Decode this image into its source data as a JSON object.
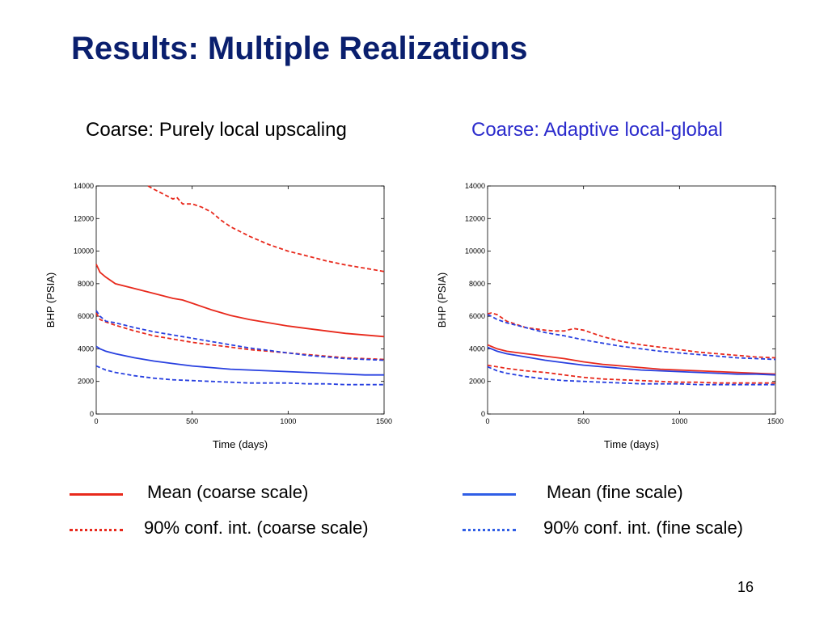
{
  "slide": {
    "title": "Results: Multiple Realizations",
    "page_number": "16",
    "subtitle_left": "Coarse: Purely local upscaling",
    "subtitle_right": "Coarse: Adaptive local-global"
  },
  "legend": {
    "mean_coarse": "Mean (coarse scale)",
    "mean_fine": "Mean (fine scale)",
    "ci_coarse": "90% conf. int. (coarse scale)",
    "ci_fine": "90% conf. int. (fine scale)"
  },
  "colors": {
    "coarse": "#e8291c",
    "fine": "#2840e0",
    "title": "#0a1f6e",
    "subtitle_right": "#2a2acc"
  },
  "chart_data": [
    {
      "type": "line",
      "xlabel": "Time (days)",
      "ylabel": "BHP (PSIA)",
      "xlim": [
        0,
        1500
      ],
      "ylim": [
        0,
        14000
      ],
      "xticks": [
        "0",
        "500",
        "1000",
        "1500"
      ],
      "yticks": [
        "0",
        "2000",
        "4000",
        "6000",
        "8000",
        "10000",
        "12000",
        "14000"
      ],
      "grid": false,
      "series": [
        {
          "style": "coarse-mean",
          "x": [
            0,
            20,
            50,
            100,
            200,
            300,
            400,
            450,
            500,
            600,
            700,
            800,
            900,
            1000,
            1100,
            1200,
            1300,
            1400,
            1500
          ],
          "y": [
            9200,
            8700,
            8400,
            8000,
            7700,
            7400,
            7100,
            7000,
            6800,
            6400,
            6050,
            5800,
            5600,
            5400,
            5250,
            5100,
            4950,
            4850,
            4750
          ]
        },
        {
          "style": "coarse-ci",
          "x": [
            270,
            300,
            350,
            400,
            420,
            450,
            500,
            550,
            600,
            650,
            700,
            800,
            900,
            1000,
            1100,
            1200,
            1300,
            1400,
            1500
          ],
          "y": [
            14000,
            13800,
            13500,
            13200,
            13300,
            12900,
            12900,
            12700,
            12400,
            11900,
            11500,
            10900,
            10400,
            10000,
            9700,
            9400,
            9150,
            8950,
            8750
          ]
        },
        {
          "style": "coarse-ci",
          "x": [
            0,
            20,
            50,
            100,
            200,
            300,
            400,
            500,
            600,
            700,
            800,
            900,
            1000,
            1100,
            1200,
            1300,
            1400,
            1500
          ],
          "y": [
            6200,
            5800,
            5650,
            5450,
            5100,
            4800,
            4600,
            4400,
            4250,
            4100,
            3950,
            3850,
            3750,
            3650,
            3550,
            3450,
            3400,
            3350
          ]
        },
        {
          "style": "fine-mean",
          "x": [
            0,
            20,
            50,
            100,
            200,
            300,
            400,
            500,
            600,
            700,
            800,
            900,
            1000,
            1100,
            1200,
            1300,
            1400,
            1500
          ],
          "y": [
            4150,
            4000,
            3850,
            3700,
            3450,
            3250,
            3100,
            2950,
            2850,
            2750,
            2700,
            2650,
            2600,
            2550,
            2500,
            2450,
            2400,
            2400
          ]
        },
        {
          "style": "fine-ci",
          "x": [
            0,
            20,
            50,
            100,
            200,
            300,
            400,
            500,
            600,
            700,
            800,
            900,
            1000,
            1100,
            1200,
            1300,
            1400,
            1500
          ],
          "y": [
            6350,
            6000,
            5700,
            5600,
            5300,
            5050,
            4850,
            4650,
            4450,
            4250,
            4050,
            3900,
            3750,
            3600,
            3500,
            3400,
            3350,
            3300
          ]
        },
        {
          "style": "fine-ci",
          "x": [
            0,
            20,
            50,
            100,
            200,
            300,
            400,
            500,
            600,
            700,
            800,
            900,
            1000,
            1100,
            1200,
            1300,
            1400,
            1500
          ],
          "y": [
            2950,
            2850,
            2700,
            2550,
            2350,
            2200,
            2100,
            2050,
            2000,
            1950,
            1900,
            1900,
            1900,
            1850,
            1850,
            1800,
            1800,
            1800
          ]
        }
      ]
    },
    {
      "type": "line",
      "xlabel": "Time (days)",
      "ylabel": "BHP (PSIA)",
      "xlim": [
        0,
        1500
      ],
      "ylim": [
        0,
        14000
      ],
      "xticks": [
        "0",
        "500",
        "1000",
        "1500"
      ],
      "yticks": [
        "0",
        "2000",
        "4000",
        "6000",
        "8000",
        "10000",
        "12000",
        "14000"
      ],
      "grid": false,
      "series": [
        {
          "style": "coarse-ci",
          "x": [
            0,
            20,
            50,
            100,
            150,
            200,
            300,
            350,
            400,
            450,
            500,
            550,
            600,
            700,
            800,
            900,
            1000,
            1100,
            1200,
            1300,
            1400,
            1500
          ],
          "y": [
            6150,
            6200,
            6100,
            5700,
            5500,
            5300,
            5150,
            5100,
            5100,
            5250,
            5150,
            4950,
            4750,
            4450,
            4250,
            4100,
            3950,
            3800,
            3700,
            3600,
            3500,
            3450
          ]
        },
        {
          "style": "fine-ci",
          "x": [
            0,
            20,
            50,
            100,
            200,
            300,
            400,
            500,
            600,
            700,
            800,
            900,
            1000,
            1100,
            1200,
            1300,
            1400,
            1500
          ],
          "y": [
            6100,
            6000,
            5800,
            5600,
            5300,
            5000,
            4800,
            4550,
            4350,
            4150,
            4000,
            3850,
            3750,
            3650,
            3550,
            3450,
            3400,
            3350
          ]
        },
        {
          "style": "coarse-mean",
          "x": [
            0,
            20,
            50,
            100,
            200,
            300,
            400,
            500,
            600,
            700,
            800,
            900,
            1000,
            1100,
            1200,
            1300,
            1400,
            1500
          ],
          "y": [
            4250,
            4150,
            4000,
            3850,
            3700,
            3550,
            3400,
            3200,
            3050,
            2950,
            2850,
            2750,
            2700,
            2650,
            2600,
            2550,
            2500,
            2450
          ]
        },
        {
          "style": "fine-mean",
          "x": [
            0,
            20,
            50,
            100,
            200,
            300,
            400,
            500,
            600,
            700,
            800,
            900,
            1000,
            1100,
            1200,
            1300,
            1400,
            1500
          ],
          "y": [
            4100,
            4000,
            3850,
            3700,
            3500,
            3300,
            3150,
            3000,
            2900,
            2800,
            2700,
            2650,
            2600,
            2550,
            2500,
            2450,
            2450,
            2400
          ]
        },
        {
          "style": "coarse-ci",
          "x": [
            0,
            20,
            50,
            100,
            200,
            300,
            400,
            500,
            600,
            700,
            800,
            900,
            1000,
            1100,
            1200,
            1300,
            1400,
            1500
          ],
          "y": [
            3000,
            2950,
            2900,
            2800,
            2650,
            2550,
            2400,
            2250,
            2150,
            2100,
            2050,
            2000,
            1950,
            1950,
            1900,
            1900,
            1900,
            1900
          ]
        },
        {
          "style": "fine-ci",
          "x": [
            0,
            20,
            50,
            100,
            200,
            300,
            400,
            500,
            600,
            700,
            800,
            900,
            1000,
            1100,
            1200,
            1300,
            1400,
            1500
          ],
          "y": [
            2900,
            2800,
            2650,
            2500,
            2300,
            2150,
            2050,
            2000,
            1950,
            1900,
            1850,
            1850,
            1850,
            1800,
            1800,
            1800,
            1800,
            1800
          ]
        }
      ]
    }
  ]
}
